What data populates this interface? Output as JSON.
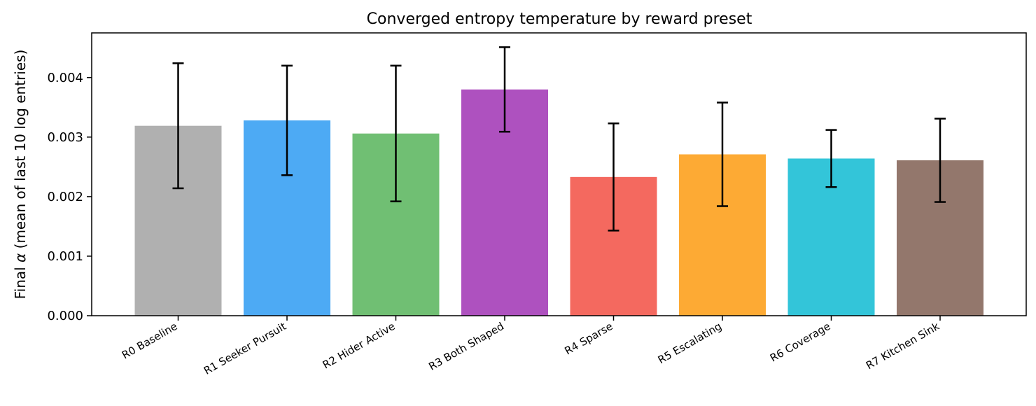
{
  "chart_data": {
    "type": "bar",
    "title": "Converged entropy temperature by reward preset",
    "ylabel_prefix": "Final ",
    "ylabel_symbol": "α",
    "ylabel_suffix": " (mean of last 10 log entries)",
    "xlabel": "",
    "ylim": [
      0,
      0.00475
    ],
    "yticks": [
      0.0,
      0.001,
      0.002,
      0.003,
      0.004
    ],
    "ytick_labels": [
      "0.000",
      "0.001",
      "0.002",
      "0.003",
      "0.004"
    ],
    "grid": false,
    "categories": [
      "R0 Baseline",
      "R1 Seeker Pursuit",
      "R2 Hider Active",
      "R3 Both Shaped",
      "R4 Sparse",
      "R5 Escalating",
      "R6 Coverage",
      "R7 Kitchen Sink"
    ],
    "values": [
      0.00319,
      0.00328,
      0.00306,
      0.0038,
      0.00233,
      0.00271,
      0.00264,
      0.00261
    ],
    "errors": [
      0.00105,
      0.00092,
      0.00114,
      0.00071,
      0.0009,
      0.00087,
      0.00048,
      0.0007
    ],
    "colors": [
      "#b0b0b0",
      "#4daaf4",
      "#70bf73",
      "#ae51bf",
      "#f4695f",
      "#fdaa34",
      "#33c5d9",
      "#93776c"
    ]
  }
}
